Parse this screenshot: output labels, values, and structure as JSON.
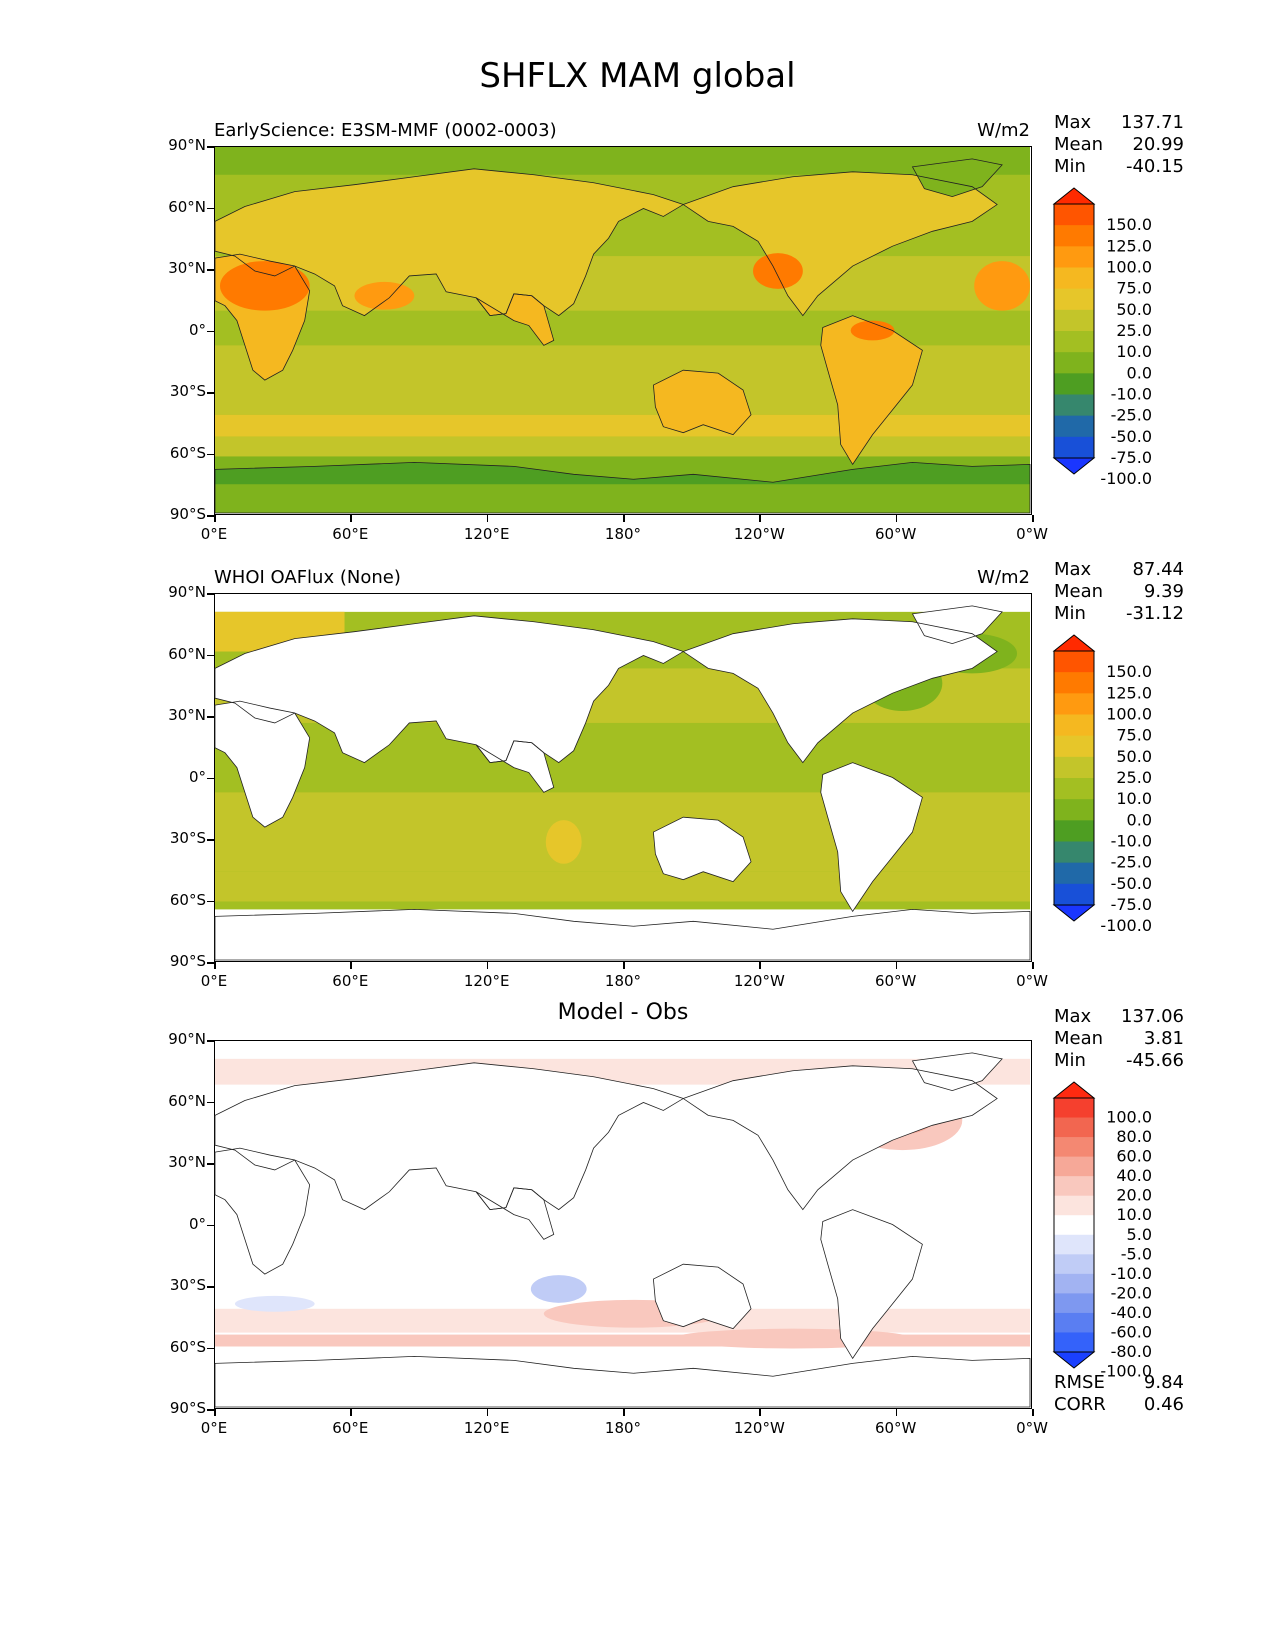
{
  "title": "SHFLX MAM global",
  "y_ticks": [
    "90°N",
    "60°N",
    "30°N",
    "0°",
    "30°S",
    "60°S",
    "90°S"
  ],
  "x_ticks": [
    "0°E",
    "60°E",
    "120°E",
    "180°",
    "120°W",
    "60°W",
    "0°W"
  ],
  "panels": [
    {
      "title_left": "EarlyScience: E3SM-MMF (0002-0003)",
      "title_center": "",
      "units": "W/m2",
      "stats": [
        {
          "label": "Max",
          "value": "137.71"
        },
        {
          "label": "Mean",
          "value": "20.99"
        },
        {
          "label": "Min",
          "value": "-40.15"
        }
      ],
      "colorbar": {
        "labels": [
          "150.0",
          "125.0",
          "100.0",
          "75.0",
          "50.0",
          "25.0",
          "10.0",
          "0.0",
          "-10.0",
          "-25.0",
          "-50.0",
          "-75.0",
          "-100.0"
        ],
        "colors": [
          "#ff2a00",
          "#ff5500",
          "#ff7a00",
          "#ff9a10",
          "#f5b820",
          "#e6c62a",
          "#c3c52a",
          "#a3bf22",
          "#7fb31d",
          "#4e9e22",
          "#36876d",
          "#2069a8",
          "#1850d8",
          "#1a36ff"
        ]
      },
      "field": "model"
    },
    {
      "title_left": "WHOI OAFlux (None)",
      "title_center": "",
      "units": "W/m2",
      "stats": [
        {
          "label": "Max",
          "value": "87.44"
        },
        {
          "label": "Mean",
          "value": "9.39"
        },
        {
          "label": "Min",
          "value": "-31.12"
        }
      ],
      "colorbar": {
        "labels": [
          "150.0",
          "125.0",
          "100.0",
          "75.0",
          "50.0",
          "25.0",
          "10.0",
          "0.0",
          "-10.0",
          "-25.0",
          "-50.0",
          "-75.0",
          "-100.0"
        ],
        "colors": [
          "#ff2a00",
          "#ff5500",
          "#ff7a00",
          "#ff9a10",
          "#f5b820",
          "#e6c62a",
          "#c3c52a",
          "#a3bf22",
          "#7fb31d",
          "#4e9e22",
          "#36876d",
          "#2069a8",
          "#1850d8",
          "#1a36ff"
        ]
      },
      "field": "obs"
    },
    {
      "title_left": "",
      "title_center": "Model - Obs",
      "units": "",
      "stats": [
        {
          "label": "Max",
          "value": "137.06"
        },
        {
          "label": "Mean",
          "value": "3.81"
        },
        {
          "label": "Min",
          "value": "-45.66"
        }
      ],
      "colorbar": {
        "labels": [
          "100.0",
          "80.0",
          "60.0",
          "40.0",
          "20.0",
          "10.0",
          "5.0",
          "-5.0",
          "-10.0",
          "-20.0",
          "-40.0",
          "-60.0",
          "-80.0",
          "-100.0"
        ],
        "colors": [
          "#ff2a10",
          "#f5402e",
          "#f26650",
          "#f48872",
          "#f6a898",
          "#f9c8be",
          "#fce4de",
          "#ffffff",
          "#dfe5fb",
          "#c0ccf6",
          "#a2b3f2",
          "#7e98f0",
          "#5a7ef2",
          "#3462fa",
          "#1a40ff"
        ]
      },
      "field": "diff",
      "rmse": [
        {
          "label": "RMSE",
          "value": "9.84"
        },
        {
          "label": "CORR",
          "value": "0.46"
        }
      ]
    }
  ]
}
